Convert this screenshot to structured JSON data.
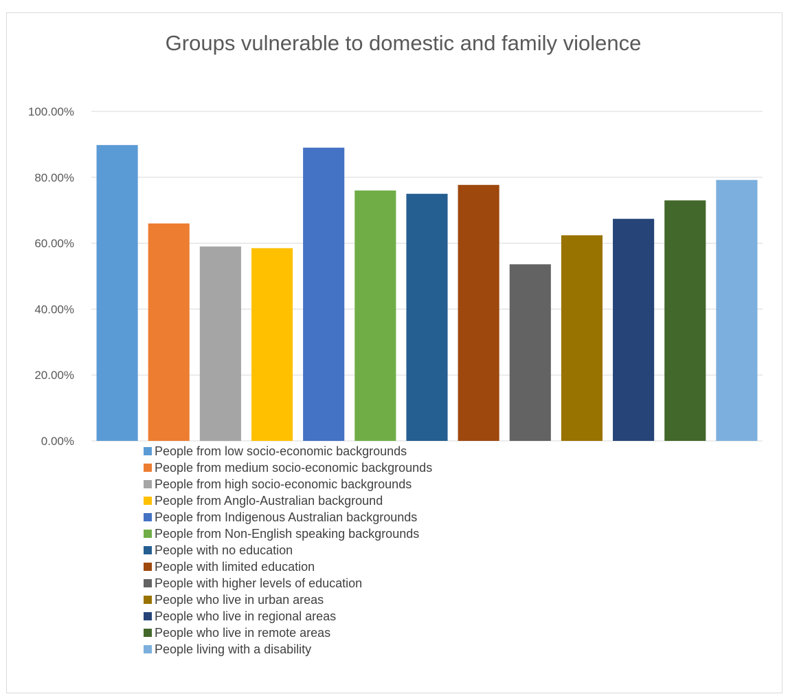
{
  "chart_data": {
    "type": "bar",
    "title": "Groups vulnerable to domestic and family violence",
    "xlabel": "",
    "ylabel": "",
    "ylim": [
      0,
      1
    ],
    "yticks": [
      {
        "value": 0,
        "label": "0.00%"
      },
      {
        "value": 0.2,
        "label": "20.00%"
      },
      {
        "value": 0.4,
        "label": "40.00%"
      },
      {
        "value": 0.6,
        "label": "60.00%"
      },
      {
        "value": 0.8,
        "label": "80.00%"
      },
      {
        "value": 1.0,
        "label": "100.00%"
      }
    ],
    "grid": true,
    "legend_position": "bottom",
    "series": [
      {
        "name": "People from low socio-economic backgrounds",
        "value": 0.898,
        "color": "#5b9bd5"
      },
      {
        "name": "People from medium socio-economic backgrounds",
        "value": 0.66,
        "color": "#ed7d31"
      },
      {
        "name": "People from high socio-economic backgrounds",
        "value": 0.59,
        "color": "#a5a5a5"
      },
      {
        "name": "People from Anglo-Australian background",
        "value": 0.585,
        "color": "#ffc000"
      },
      {
        "name": "People from Indigenous Australian backgrounds",
        "value": 0.89,
        "color": "#4472c4"
      },
      {
        "name": "People from Non-English speaking backgrounds",
        "value": 0.76,
        "color": "#70ad47"
      },
      {
        "name": "People with no education",
        "value": 0.75,
        "color": "#255e91"
      },
      {
        "name": "People with limited education",
        "value": 0.777,
        "color": "#9e480e"
      },
      {
        "name": "People with higher levels of education",
        "value": 0.536,
        "color": "#636363"
      },
      {
        "name": "People who live in urban areas",
        "value": 0.624,
        "color": "#997300"
      },
      {
        "name": "People who live in regional areas",
        "value": 0.674,
        "color": "#264478"
      },
      {
        "name": "People who live in remote areas",
        "value": 0.73,
        "color": "#43682b"
      },
      {
        "name": "People living with a disability",
        "value": 0.792,
        "color": "#7cafdd"
      }
    ]
  }
}
